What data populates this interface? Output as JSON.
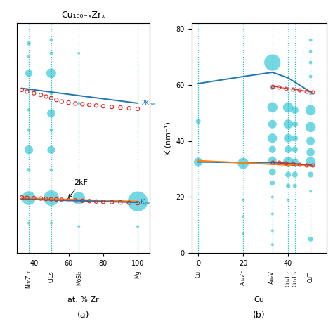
{
  "chart_data": [
    {
      "type": "bubble",
      "title": "Cu₁₀₀₋ₓZrₓ",
      "xlabel": "at. % Zr",
      "xlim": [
        30,
        107
      ],
      "ylim": [
        14,
        83
      ],
      "xticks": [
        40,
        60,
        80,
        100
      ],
      "tick_labels": "x",
      "annotations": [
        {
          "text": "2kF",
          "x": 59,
          "y": 30.0,
          "text_x": 63,
          "text_y": 34.5
        },
        {
          "text": "(a)"
        }
      ],
      "series": [
        {
          "name": "Ni₁₀Zr₇",
          "type": "bubble",
          "color": "#17becf",
          "line_style": "dotted",
          "x": 37,
          "values": [
            77,
            73,
            68,
            63,
            57,
            51,
            45,
            39,
            30.5,
            23
          ],
          "sizes": [
            18,
            10,
            55,
            10,
            10,
            12,
            80,
            15,
            200,
            8
          ]
        },
        {
          "name": "ClCs",
          "type": "bubble",
          "color": "#17becf",
          "line_style": "dotted",
          "x": 50,
          "values": [
            78,
            74,
            68,
            62,
            56,
            51,
            45,
            39,
            30.5,
            23
          ],
          "sizes": [
            12,
            12,
            100,
            12,
            70,
            12,
            65,
            12,
            250,
            8
          ]
        },
        {
          "name": "MoSi₂",
          "type": "bubble",
          "color": "#17becf",
          "line_style": "dotted",
          "x": 66,
          "values": [
            74,
            59,
            30.5,
            22
          ],
          "sizes": [
            8,
            8,
            160,
            8
          ]
        },
        {
          "name": "Mg",
          "type": "bubble",
          "color": "#17becf",
          "line_style": "dotted",
          "x": 100,
          "values": [
            29.5,
            22
          ],
          "sizes": [
            420,
            8
          ]
        },
        {
          "name": "2Kₚₑ",
          "type": "line",
          "color": "#1f77b4",
          "x": [
            33,
            100
          ],
          "values": [
            63.5,
            59.0
          ]
        },
        {
          "type": "line",
          "color": "#ff7f0e",
          "x": [
            33,
            100
          ],
          "values": [
            30.5,
            29.5
          ]
        },
        {
          "name": "Kₚₑ",
          "type": "line",
          "color": "#1f77b4",
          "x": [
            33,
            100
          ],
          "values": [
            30.2,
            29.2
          ]
        },
        {
          "type": "scatter",
          "marker": "o",
          "color": "#d62728",
          "x": [
            33,
            36,
            40,
            44,
            47,
            50,
            53,
            56,
            60,
            64,
            68,
            72,
            76,
            80,
            85,
            90,
            95,
            100
          ],
          "values": [
            63.0,
            62.5,
            62.0,
            61.5,
            61.0,
            60.5,
            60.0,
            59.5,
            59.2,
            58.9,
            58.7,
            58.5,
            58.3,
            58.1,
            57.9,
            57.7,
            57.5,
            57.3
          ]
        },
        {
          "type": "scatter",
          "marker": "o",
          "color": "#d62728",
          "x": [
            33,
            36,
            40,
            44,
            47,
            50,
            53,
            56,
            60,
            64,
            68,
            72,
            76,
            80,
            85,
            90,
            95,
            100
          ],
          "values": [
            30.7,
            30.6,
            30.5,
            30.4,
            30.3,
            30.2,
            30.1,
            30.0,
            29.9,
            29.8,
            29.7,
            29.6,
            29.5,
            29.4,
            29.3,
            29.2,
            29.1,
            29.0
          ]
        }
      ]
    },
    {
      "type": "bubble",
      "xlabel": "Cu",
      "ylabel": "K (nm⁻¹)",
      "xlim": [
        -3,
        57
      ],
      "ylim": [
        0,
        82
      ],
      "xticks": [
        0,
        20,
        40
      ],
      "yticks": [
        0,
        20,
        40,
        60,
        80
      ],
      "annotations": [
        {
          "text": "(b)"
        }
      ],
      "series": [
        {
          "name": "Cu",
          "type": "bubble",
          "color": "#17becf",
          "line_style": "dotted",
          "x": 0,
          "values": [
            32.5,
            47
          ],
          "sizes": [
            80,
            25
          ]
        },
        {
          "name": "Au₄Zr",
          "type": "bubble",
          "color": "#17becf",
          "line_style": "dotted",
          "x": 20,
          "values": [
            32.0,
            19,
            13,
            7
          ],
          "sizes": [
            130,
            8,
            8,
            8
          ]
        },
        {
          "name": "AuₓV",
          "type": "bubble",
          "color": "#17becf",
          "line_style": "dotted",
          "x": 33,
          "values": [
            68,
            59,
            52,
            46,
            41,
            37,
            33,
            29,
            25,
            20,
            14,
            8,
            3
          ],
          "sizes": [
            280,
            18,
            110,
            75,
            90,
            55,
            75,
            50,
            25,
            8,
            8,
            8,
            8
          ]
        },
        {
          "name": "Cu₄Ti₂",
          "type": "bubble",
          "color": "#17becf",
          "line_style": "dotted",
          "x": 40,
          "values": [
            52,
            46,
            41,
            37,
            32.5,
            28,
            24,
            19
          ],
          "sizes": [
            110,
            90,
            75,
            55,
            110,
            35,
            22,
            8
          ]
        },
        {
          "name": "Cu₃Ti₃",
          "type": "bubble",
          "color": "#17becf",
          "line_style": "dotted",
          "x": 43,
          "values": [
            51,
            46,
            41,
            37,
            32.5,
            28,
            24
          ],
          "sizes": [
            55,
            38,
            38,
            38,
            55,
            35,
            18
          ]
        },
        {
          "name": "CuTi",
          "type": "bubble",
          "color": "#17becf",
          "line_style": "dotted",
          "x": 50,
          "values": [
            76,
            72,
            68,
            63,
            57,
            51,
            45,
            40,
            36,
            32.5,
            28,
            22,
            5
          ],
          "sizes": [
            12,
            12,
            12,
            12,
            12,
            110,
            110,
            75,
            70,
            110,
            35,
            8,
            25
          ]
        },
        {
          "type": "line",
          "color": "#1f77b4",
          "x": [
            0,
            20,
            33,
            40,
            50
          ],
          "values": [
            60.5,
            63.0,
            64.5,
            62.5,
            57.5
          ]
        },
        {
          "type": "line",
          "color": "#d62728",
          "marker": "o",
          "line_style": "solid",
          "x": [
            33,
            36,
            39,
            42,
            45,
            48,
            51
          ],
          "values": [
            59.5,
            59.2,
            58.8,
            58.5,
            58.2,
            57.8,
            57.5
          ]
        },
        {
          "type": "line",
          "color": "#1f77b4",
          "x": [
            0,
            20,
            33,
            40,
            50
          ],
          "values": [
            32.5,
            32.3,
            32.3,
            32.0,
            31.5
          ]
        },
        {
          "type": "line",
          "color": "#ff7f0e",
          "x": [
            0,
            50
          ],
          "values": [
            33.0,
            31.0
          ]
        },
        {
          "type": "line",
          "color": "#d62728",
          "marker": "o",
          "line_style": "solid",
          "x": [
            33,
            36,
            39,
            42,
            45,
            48,
            51
          ],
          "values": [
            32.5,
            32.3,
            32.1,
            31.9,
            31.7,
            31.5,
            31.3
          ]
        }
      ]
    }
  ]
}
